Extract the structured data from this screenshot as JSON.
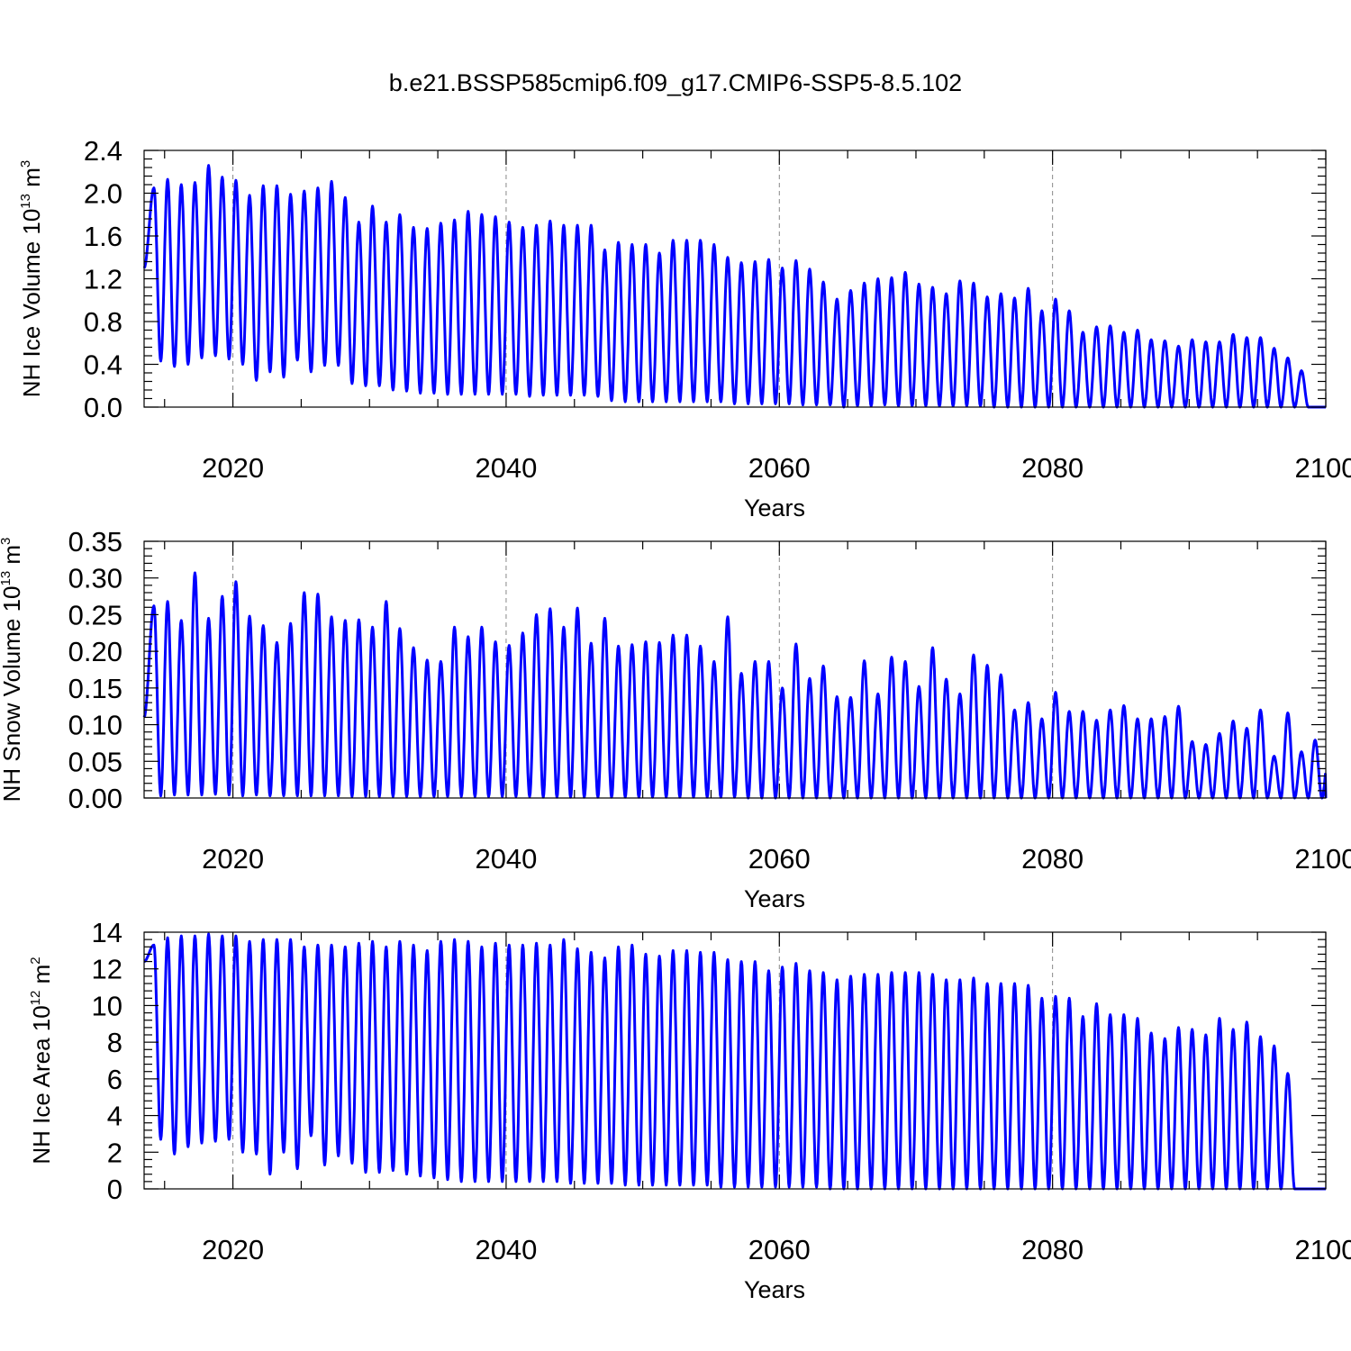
{
  "title": "b.e21.BSSP585cmip6.f09_g17.CMIP6-SSP5-8.5.102",
  "colors": {
    "series": "#0000ff",
    "axes": "#000000",
    "gridline": "#888888"
  },
  "chart_data": [
    {
      "type": "line",
      "ylabel_main": "NH Ice Volume 10",
      "ylabel_exp": "13",
      "ylabel_unit": "m",
      "ylabel_unit_exp": "3",
      "xlabel": "Years",
      "xlim": [
        2013.5,
        2100
      ],
      "ylim": [
        0,
        2.4
      ],
      "xticks": [
        2020,
        2040,
        2060,
        2080,
        2100
      ],
      "xtick_labels": [
        "2020",
        "2040",
        "2060",
        "2080",
        "2100"
      ],
      "yticks": [
        0,
        0.4,
        0.8,
        1.2,
        1.6,
        2.0,
        2.4
      ],
      "ytick_labels": [
        "0.0",
        "0.4",
        "0.8",
        "1.2",
        "1.6",
        "2.0",
        "2.4"
      ],
      "grid": "dashed vertical at 2020, 2040, 2060, 2080",
      "start_value": 1.3,
      "annual_max": [
        2.05,
        2.13,
        2.08,
        2.1,
        2.26,
        2.15,
        2.12,
        1.98,
        2.07,
        2.07,
        1.99,
        2.02,
        2.05,
        2.11,
        1.96,
        1.73,
        1.88,
        1.73,
        1.8,
        1.68,
        1.67,
        1.72,
        1.75,
        1.83,
        1.8,
        1.78,
        1.73,
        1.68,
        1.7,
        1.74,
        1.7,
        1.7,
        1.7,
        1.47,
        1.54,
        1.52,
        1.52,
        1.44,
        1.56,
        1.56,
        1.56,
        1.52,
        1.4,
        1.35,
        1.36,
        1.38,
        1.3,
        1.37,
        1.29,
        1.17,
        1.01,
        1.09,
        1.16,
        1.2,
        1.21,
        1.26,
        1.15,
        1.12,
        1.06,
        1.18,
        1.16,
        1.03,
        1.06,
        1.02,
        1.11,
        0.9,
        1.01,
        0.9,
        0.7,
        0.75,
        0.76,
        0.7,
        0.72,
        0.63,
        0.62,
        0.57,
        0.63,
        0.61,
        0.61,
        0.68,
        0.65,
        0.65,
        0.55,
        0.46,
        0.34
      ],
      "annual_min": [
        0.43,
        0.38,
        0.4,
        0.46,
        0.48,
        0.45,
        0.4,
        0.25,
        0.33,
        0.28,
        0.44,
        0.33,
        0.39,
        0.39,
        0.22,
        0.2,
        0.2,
        0.16,
        0.15,
        0.13,
        0.13,
        0.12,
        0.12,
        0.12,
        0.12,
        0.12,
        0.12,
        0.1,
        0.11,
        0.11,
        0.11,
        0.11,
        0.1,
        0.06,
        0.05,
        0.05,
        0.05,
        0.05,
        0.05,
        0.05,
        0.05,
        0.05,
        0.03,
        0.03,
        0.03,
        0.03,
        0.03,
        0.02,
        0.02,
        0.02,
        0.0,
        0.01,
        0.01,
        0.02,
        0.01,
        0.01,
        0.01,
        0.01,
        0.01,
        0.01,
        0.01,
        0.0,
        0.0,
        0.0,
        0.0,
        0.0,
        0.0,
        0.0,
        0.0,
        0.0,
        0.0,
        0.0,
        0.0,
        0.0,
        0.0,
        0.0,
        0.0,
        0.0,
        0.0,
        0.0,
        0.0,
        0.0,
        0.0,
        0.0,
        0.0
      ]
    },
    {
      "type": "line",
      "ylabel_main": "NH Snow Volume 10",
      "ylabel_exp": "13",
      "ylabel_unit": "m",
      "ylabel_unit_exp": "3",
      "xlabel": "Years",
      "xlim": [
        2013.5,
        2100
      ],
      "ylim": [
        0,
        0.35
      ],
      "xticks": [
        2020,
        2040,
        2060,
        2080,
        2100
      ],
      "xtick_labels": [
        "2020",
        "2040",
        "2060",
        "2080",
        "2100"
      ],
      "yticks": [
        0,
        0.05,
        0.1,
        0.15,
        0.2,
        0.25,
        0.3,
        0.35
      ],
      "ytick_labels": [
        "0.00",
        "0.05",
        "0.10",
        "0.15",
        "0.20",
        "0.25",
        "0.30",
        "0.35"
      ],
      "grid": "dashed vertical at 2020, 2040, 2060, 2080",
      "start_value": 0.11,
      "annual_max": [
        0.262,
        0.268,
        0.242,
        0.307,
        0.245,
        0.275,
        0.295,
        0.248,
        0.235,
        0.212,
        0.238,
        0.28,
        0.278,
        0.247,
        0.242,
        0.243,
        0.233,
        0.268,
        0.231,
        0.205,
        0.188,
        0.186,
        0.233,
        0.22,
        0.233,
        0.213,
        0.208,
        0.225,
        0.25,
        0.258,
        0.233,
        0.259,
        0.211,
        0.245,
        0.207,
        0.209,
        0.213,
        0.212,
        0.222,
        0.222,
        0.207,
        0.186,
        0.247,
        0.17,
        0.186,
        0.186,
        0.15,
        0.21,
        0.163,
        0.18,
        0.138,
        0.137,
        0.187,
        0.142,
        0.192,
        0.186,
        0.152,
        0.205,
        0.162,
        0.142,
        0.195,
        0.181,
        0.168,
        0.12,
        0.13,
        0.108,
        0.144,
        0.118,
        0.118,
        0.106,
        0.12,
        0.126,
        0.108,
        0.108,
        0.111,
        0.125,
        0.077,
        0.073,
        0.088,
        0.105,
        0.095,
        0.12,
        0.057,
        0.116,
        0.063,
        0.079,
        0.065
      ],
      "annual_min": [
        0.003,
        0.004,
        0.004,
        0.004,
        0.005,
        0.004,
        0.003,
        0.004,
        0.003,
        0.003,
        0.003,
        0.003,
        0.003,
        0.003,
        0.002,
        0.002,
        0.002,
        0.002,
        0.002,
        0.002,
        0.002,
        0.002,
        0.002,
        0.002,
        0.002,
        0.002,
        0.002,
        0.002,
        0.001,
        0.001,
        0.001,
        0.001,
        0.001,
        0.001,
        0.001,
        0.001,
        0.001,
        0.001,
        0.001,
        0.001,
        0.001,
        0.001,
        0.001,
        0.0,
        0.0,
        0.0,
        0.0,
        0.0,
        0.0,
        0.0,
        0.0,
        0.0,
        0.0,
        0.0,
        0.0,
        0.0,
        0.0,
        0.0,
        0.0,
        0.0,
        0.0,
        0.0,
        0.0,
        0.0,
        0.0,
        0.0,
        0.0,
        0.0,
        0.0,
        0.0,
        0.0,
        0.0,
        0.0,
        0.0,
        0.0,
        0.0,
        0.0,
        0.0,
        0.0,
        0.0,
        0.0,
        0.0,
        0.0,
        0.0,
        0.0,
        0.0,
        0.0
      ]
    },
    {
      "type": "line",
      "ylabel_main": "NH Ice Area 10",
      "ylabel_exp": "12",
      "ylabel_unit": "m",
      "ylabel_unit_exp": "2",
      "xlabel": "Years",
      "xlim": [
        2013.5,
        2100
      ],
      "ylim": [
        0,
        14
      ],
      "xticks": [
        2020,
        2040,
        2060,
        2080,
        2100
      ],
      "xtick_labels": [
        "2020",
        "2040",
        "2060",
        "2080",
        "2100"
      ],
      "yticks": [
        0,
        2,
        4,
        6,
        8,
        10,
        12,
        14
      ],
      "ytick_labels": [
        "0",
        "2",
        "4",
        "6",
        "8",
        "10",
        "12",
        "14"
      ],
      "grid": "dashed vertical at 2020, 2040, 2060, 2080",
      "start_value": 12.4,
      "annual_max": [
        13.3,
        13.7,
        13.8,
        13.8,
        13.9,
        13.8,
        13.8,
        13.5,
        13.6,
        13.6,
        13.6,
        13.2,
        13.3,
        13.3,
        13.2,
        13.4,
        13.5,
        13.2,
        13.5,
        13.3,
        13.0,
        13.5,
        13.6,
        13.5,
        13.2,
        13.4,
        13.3,
        13.3,
        13.4,
        13.3,
        13.6,
        13.1,
        12.9,
        12.6,
        13.2,
        13.3,
        12.8,
        12.7,
        13.0,
        13.0,
        12.9,
        12.9,
        12.5,
        12.4,
        12.4,
        11.9,
        12.1,
        12.3,
        11.9,
        11.8,
        11.4,
        11.6,
        11.7,
        11.7,
        11.8,
        11.8,
        11.8,
        11.7,
        11.4,
        11.4,
        11.5,
        11.2,
        11.2,
        11.2,
        11.1,
        10.4,
        10.5,
        10.4,
        9.4,
        10.1,
        9.5,
        9.5,
        9.3,
        8.5,
        8.2,
        8.8,
        8.7,
        8.4,
        9.3,
        8.7,
        9.1,
        8.3,
        7.8,
        6.3
      ],
      "annual_min": [
        2.7,
        1.9,
        2.3,
        2.5,
        2.6,
        2.7,
        2.0,
        1.9,
        0.8,
        2.0,
        1.1,
        2.9,
        1.3,
        1.8,
        1.4,
        0.9,
        0.9,
        1.0,
        0.8,
        0.7,
        0.6,
        0.5,
        0.4,
        0.4,
        0.4,
        0.4,
        0.4,
        0.4,
        0.4,
        0.4,
        0.3,
        0.3,
        0.3,
        0.3,
        0.2,
        0.2,
        0.2,
        0.2,
        0.2,
        0.2,
        0.2,
        0.1,
        0.1,
        0.1,
        0.1,
        0.1,
        0.1,
        0.1,
        0.1,
        0.0,
        0.0,
        0.0,
        0.0,
        0.0,
        0.0,
        0.0,
        0.0,
        0.0,
        0.0,
        0.0,
        0.0,
        0.0,
        0.0,
        0.0,
        0.0,
        0.0,
        0.0,
        0.0,
        0.0,
        0.0,
        0.0,
        0.0,
        0.0,
        0.0,
        0.0,
        0.0,
        0.0,
        0.0,
        0.0,
        0.0,
        0.0,
        0.0,
        0.0,
        0.0
      ]
    }
  ]
}
